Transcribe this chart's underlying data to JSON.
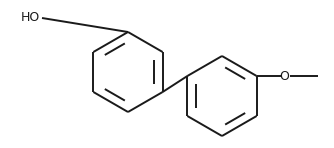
{
  "bg_color": "#ffffff",
  "line_color": "#1a1a1a",
  "line_width": 1.4,
  "fig_width": 3.34,
  "fig_height": 1.48,
  "dpi": 100,
  "font_size": 9.0
}
